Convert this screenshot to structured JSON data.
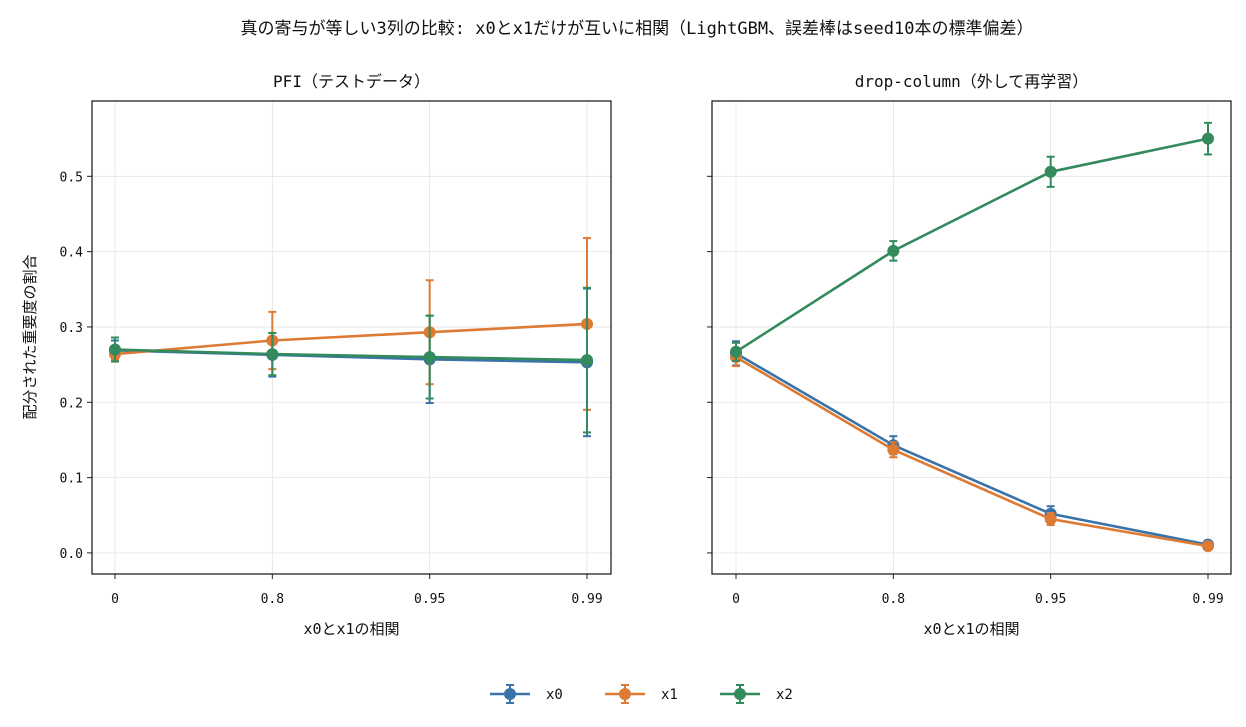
{
  "figure": {
    "suptitle": "真の寄与が等しい3列の比較: x0とx1だけが互いに相関（LightGBM、誤差棒はseed10本の標準偏差）"
  },
  "legend": {
    "placement": "bottom-center",
    "entries": [
      "x0",
      "x1",
      "x2"
    ]
  },
  "colors": {
    "x0": "#3a73a8",
    "x1": "#dd7a34",
    "x2": "#338a5c",
    "grid": "#e3e3e3"
  },
  "chart_data": [
    {
      "type": "line",
      "title": "PFI（テストデータ）",
      "xlabel": "x0とx1の相関",
      "ylabel": "配分された重要度の割合",
      "categories": [
        "0",
        "0.8",
        "0.95",
        "0.99"
      ],
      "ylim": [
        -0.028,
        0.6
      ],
      "yticks": [
        "0.0",
        "0.1",
        "0.2",
        "0.3",
        "0.4",
        "0.5"
      ],
      "grid": true,
      "series": [
        {
          "name": "x0",
          "values": [
            0.269,
            0.263,
            0.257,
            0.253
          ],
          "err": [
            0.013,
            0.029,
            0.058,
            0.098
          ]
        },
        {
          "name": "x1",
          "values": [
            0.264,
            0.282,
            0.293,
            0.304
          ],
          "err": [
            0.007,
            0.038,
            0.069,
            0.114
          ]
        },
        {
          "name": "x2",
          "values": [
            0.27,
            0.264,
            0.26,
            0.256
          ],
          "err": [
            0.016,
            0.028,
            0.055,
            0.096
          ]
        }
      ]
    },
    {
      "type": "line",
      "title": "drop-column（外して再学習）",
      "xlabel": "x0とx1の相関",
      "ylabel": "",
      "categories": [
        "0",
        "0.8",
        "0.95",
        "0.99"
      ],
      "ylim": [
        -0.028,
        0.6
      ],
      "yticks": [],
      "grid": true,
      "series": [
        {
          "name": "x0",
          "values": [
            0.265,
            0.143,
            0.052,
            0.011
          ],
          "err": [
            0.016,
            0.012,
            0.01,
            0.003
          ]
        },
        {
          "name": "x1",
          "values": [
            0.26,
            0.137,
            0.045,
            0.009
          ],
          "err": [
            0.012,
            0.01,
            0.008,
            0.003
          ]
        },
        {
          "name": "x2",
          "values": [
            0.267,
            0.401,
            0.506,
            0.55
          ],
          "err": [
            0.012,
            0.013,
            0.02,
            0.021
          ]
        }
      ]
    }
  ]
}
